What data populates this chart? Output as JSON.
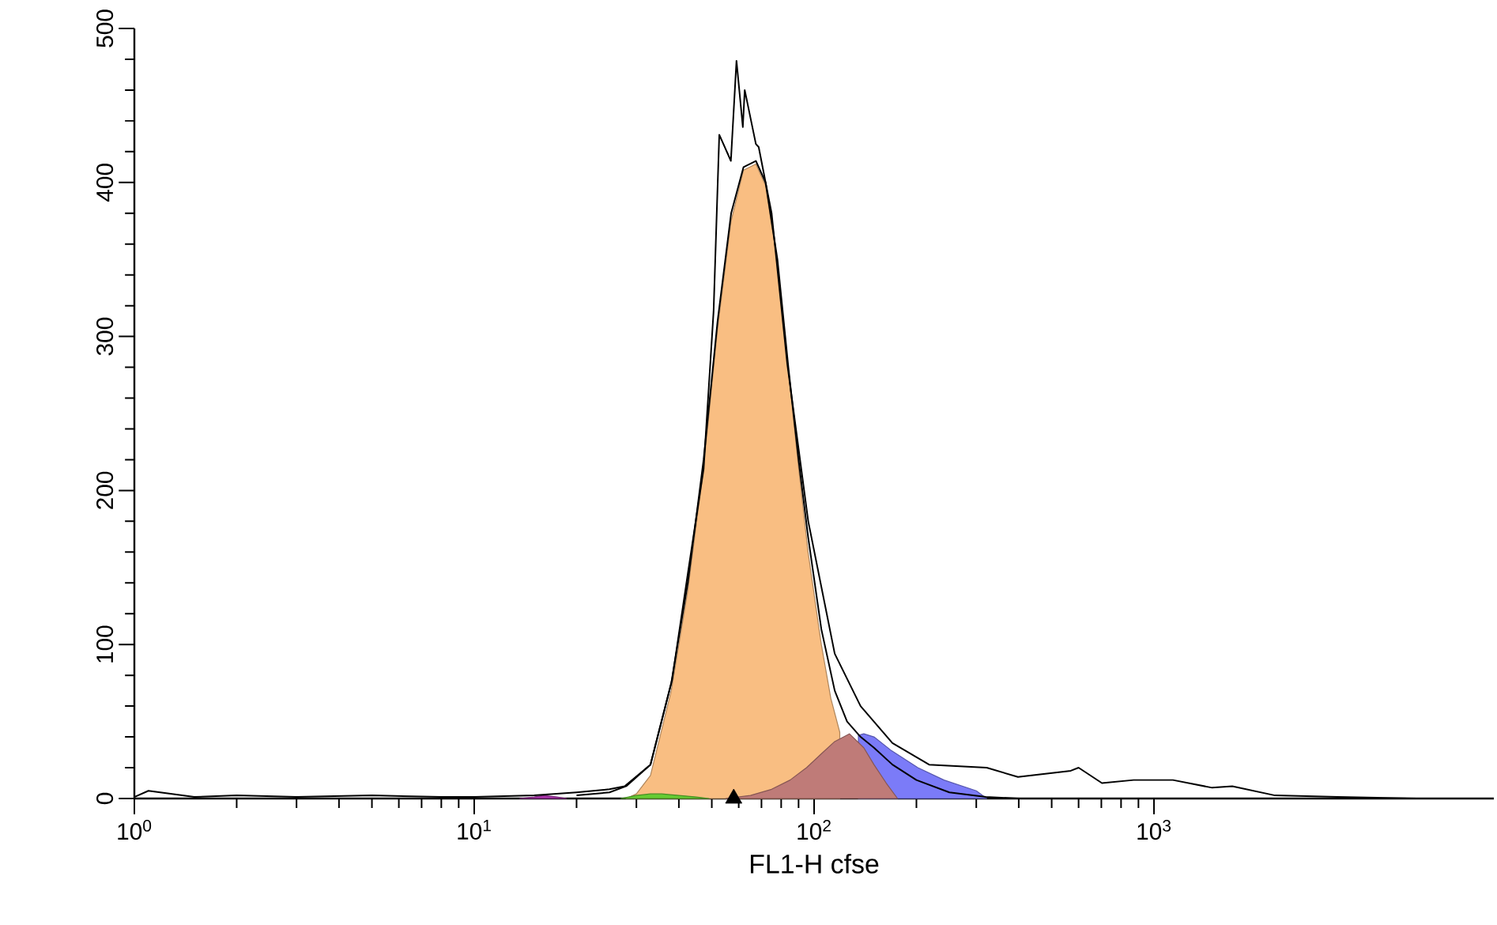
{
  "chart_data": {
    "type": "area",
    "xlabel": "FL1-H cfse",
    "log": "x",
    "xlim": [
      1,
      10000
    ],
    "ylim": [
      0,
      500
    ],
    "xticks": [
      {
        "value": 1,
        "label": "10$^{0}$"
      },
      {
        "value": 10,
        "label": "10$^{1}$"
      },
      {
        "value": 100,
        "label": "10$^{2}$"
      },
      {
        "value": 1000,
        "label": "10$^{3}$"
      }
    ],
    "yticks": [
      0,
      100,
      200,
      300,
      400,
      500
    ],
    "series": [
      {
        "color": "#f9be82",
        "x": [
          28,
          30,
          33,
          38,
          42.5,
          47.3,
          52,
          57,
          62,
          67.4,
          72,
          78,
          84,
          90,
          96,
          105,
          112,
          119
        ],
        "values": [
          0,
          3,
          15,
          70,
          135,
          215,
          305,
          375,
          408,
          412,
          398,
          348,
          278,
          215,
          160,
          100,
          65,
          43
        ]
      },
      {
        "color": "#7b7bf8",
        "x": [
          135,
          140,
          150,
          169,
          202,
          241,
          300,
          322
        ],
        "values": [
          41,
          42,
          40,
          31,
          20,
          12,
          5,
          0
        ]
      },
      {
        "color": "#bf7b78",
        "x": [
          55,
          65,
          75,
          85,
          95,
          105,
          115,
          127,
          140,
          150,
          163,
          176
        ],
        "values": [
          0,
          2,
          6,
          12,
          20,
          29,
          37,
          42,
          33,
          22,
          10,
          0
        ]
      },
      {
        "color": "#66cc33",
        "x": [
          27,
          30,
          33,
          35.6,
          40,
          45,
          49
        ],
        "values": [
          0,
          2,
          3,
          3,
          2,
          1,
          0
        ]
      },
      {
        "color": "#aa33aa",
        "x": [
          13.6,
          15,
          16,
          17.5,
          18.7
        ],
        "values": [
          0,
          1,
          2,
          1,
          0
        ]
      },
      {
        "type": "line",
        "color": "#000000",
        "x": [
          1,
          1.1,
          1.5,
          2,
          3,
          5,
          8,
          10,
          15,
          20,
          25,
          27.7,
          33,
          38.2,
          42.5,
          47.3,
          50.6,
          52.6,
          56.9,
          59.1,
          61.7,
          62.5,
          67.4,
          68.7,
          75,
          83.4,
          96.1,
          115,
          137,
          170,
          218,
          322,
          398,
          569,
          600,
          703,
          871,
          1137,
          1483,
          1700,
          2271,
          3480,
          5934
        ],
        "values": [
          1,
          5,
          1,
          2,
          1,
          2,
          1,
          1,
          2,
          4,
          6,
          8,
          22,
          77,
          146,
          214,
          316,
          431,
          414,
          479,
          436,
          460,
          425,
          423,
          380,
          282,
          180,
          94,
          60,
          36,
          22,
          20,
          14,
          18,
          20,
          10,
          12,
          12,
          7,
          8,
          2,
          1,
          0
        ]
      },
      {
        "type": "line",
        "color": "#000000",
        "x": [
          20,
          25,
          28,
          33,
          38,
          42.5,
          47.3,
          52,
          57,
          62,
          67.4,
          72,
          78,
          84,
          90,
          96,
          105,
          115,
          125,
          137,
          150,
          170,
          200,
          250,
          320,
          400
        ],
        "values": [
          2,
          4,
          8,
          22,
          75,
          140,
          220,
          310,
          380,
          410,
          414,
          400,
          350,
          280,
          220,
          170,
          110,
          70,
          50,
          40,
          33,
          22,
          12,
          4,
          1,
          0
        ]
      },
      {
        "type": "scatter",
        "marker": "triangle",
        "color": "#000000",
        "x": [
          58
        ],
        "values": [
          0
        ]
      }
    ]
  }
}
